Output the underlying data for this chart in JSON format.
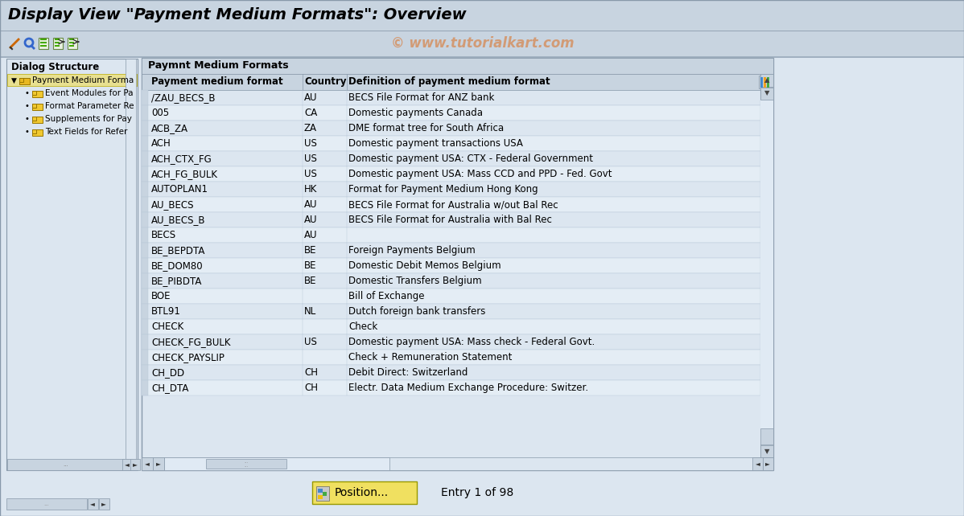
{
  "title": "Display View \"Payment Medium Formats\": Overview",
  "watermark": "© www.tutorialkart.com",
  "bg_color": "#dce6f0",
  "toolbar_bg": "#c8d4e0",
  "title_bar_bg": "#c8d4e0",
  "content_bg": "#dce6f0",
  "dialog_panel_bg": "#dce6f0",
  "table_outer_bg": "#c8d4e0",
  "table_row_bg1": "#dce6f0",
  "table_row_bg2": "#e4edf5",
  "table_header_bg": "#c8d4e0",
  "scrollbar_bg": "#dce6f0",
  "scrollbar_btn": "#c8d4e0",
  "border_color": "#8899aa",
  "dialog_title": "Dialog Structure",
  "dialog_items": [
    {
      "label": "Payment Medium Forma",
      "indent": 0,
      "selected": true
    },
    {
      "label": "Event Modules for Pa",
      "indent": 1
    },
    {
      "label": "Format Parameter Re",
      "indent": 1
    },
    {
      "label": "Supplements for Pay",
      "indent": 1
    },
    {
      "label": "Text Fields for Refer",
      "indent": 1
    }
  ],
  "table_title": "Paymnt Medium Formats",
  "col_headers": [
    "Payment medium format",
    "Country",
    "Definition of payment medium format"
  ],
  "rows": [
    [
      "/ZAU_BECS_B",
      "AU",
      "BECS File Format for ANZ bank"
    ],
    [
      "005",
      "CA",
      "Domestic payments Canada"
    ],
    [
      "ACB_ZA",
      "ZA",
      "DME format tree for South Africa"
    ],
    [
      "ACH",
      "US",
      "Domestic payment transactions USA"
    ],
    [
      "ACH_CTX_FG",
      "US",
      "Domestic payment USA: CTX - Federal Government"
    ],
    [
      "ACH_FG_BULK",
      "US",
      "Domestic payment USA: Mass CCD and PPD - Fed. Govt"
    ],
    [
      "AUTOPLAN1",
      "HK",
      "Format for Payment Medium Hong Kong"
    ],
    [
      "AU_BECS",
      "AU",
      "BECS File Format for Australia w/out Bal Rec"
    ],
    [
      "AU_BECS_B",
      "AU",
      "BECS File Format for Australia with Bal Rec"
    ],
    [
      "BECS",
      "AU",
      ""
    ],
    [
      "BE_BEPDTA",
      "BE",
      "Foreign Payments Belgium"
    ],
    [
      "BE_DOM80",
      "BE",
      "Domestic Debit Memos Belgium"
    ],
    [
      "BE_PIBDTA",
      "BE",
      "Domestic Transfers Belgium"
    ],
    [
      "BOE",
      "",
      "Bill of Exchange"
    ],
    [
      "BTL91",
      "NL",
      "Dutch foreign bank transfers"
    ],
    [
      "CHECK",
      "",
      "Check"
    ],
    [
      "CHECK_FG_BULK",
      "US",
      "Domestic payment USA: Mass check - Federal Govt."
    ],
    [
      "CHECK_PAYSLIP",
      "",
      "Check + Remuneration Statement"
    ],
    [
      "CH_DD",
      "CH",
      "Debit Direct: Switzerland"
    ],
    [
      "CH_DTA",
      "CH",
      "Electr. Data Medium Exchange Procedure: Switzer."
    ]
  ],
  "footer_text": "Entry 1 of 98",
  "position_btn_label": "Position...",
  "title_fontsize": 14,
  "body_fontsize": 8.5,
  "small_fontsize": 7.5
}
